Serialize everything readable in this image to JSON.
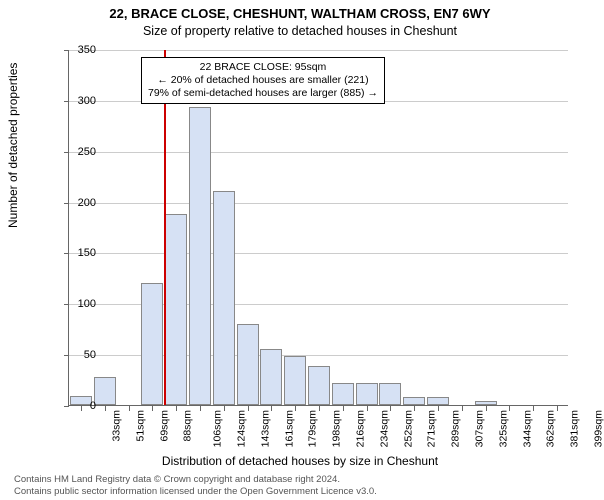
{
  "title_line1": "22, BRACE CLOSE, CHESHUNT, WALTHAM CROSS, EN7 6WY",
  "title_line2": "Size of property relative to detached houses in Cheshunt",
  "chart": {
    "type": "histogram",
    "ylim": [
      0,
      350
    ],
    "ytick_step": 50,
    "yticks": [
      0,
      50,
      100,
      150,
      200,
      250,
      300,
      350
    ],
    "ylabel": "Number of detached properties",
    "xlabel": "Distribution of detached houses by size in Cheshunt",
    "xticks": [
      "33sqm",
      "51sqm",
      "69sqm",
      "88sqm",
      "106sqm",
      "124sqm",
      "143sqm",
      "161sqm",
      "179sqm",
      "198sqm",
      "216sqm",
      "234sqm",
      "252sqm",
      "271sqm",
      "289sqm",
      "307sqm",
      "325sqm",
      "344sqm",
      "362sqm",
      "381sqm",
      "399sqm"
    ],
    "bar_values": [
      9,
      28,
      0,
      120,
      188,
      293,
      210,
      80,
      55,
      48,
      38,
      22,
      22,
      22,
      8,
      8,
      0,
      4,
      0,
      0,
      0
    ],
    "bar_fill": "#d6e1f4",
    "bar_border": "#888888",
    "grid_color": "#cccccc",
    "reference_line": {
      "index_between": 3.5,
      "color": "#cc0000"
    },
    "annotation": {
      "line1": "22 BRACE CLOSE: 95sqm",
      "line2": "← 20% of detached houses are smaller (221)",
      "line3": "79% of semi-detached houses are larger (885) →"
    }
  },
  "ylabel": "Number of detached properties",
  "xlabel": "Distribution of detached houses by size in Cheshunt",
  "footer1": "Contains HM Land Registry data © Crown copyright and database right 2024.",
  "footer2": "Contains public sector information licensed under the Open Government Licence v3.0."
}
